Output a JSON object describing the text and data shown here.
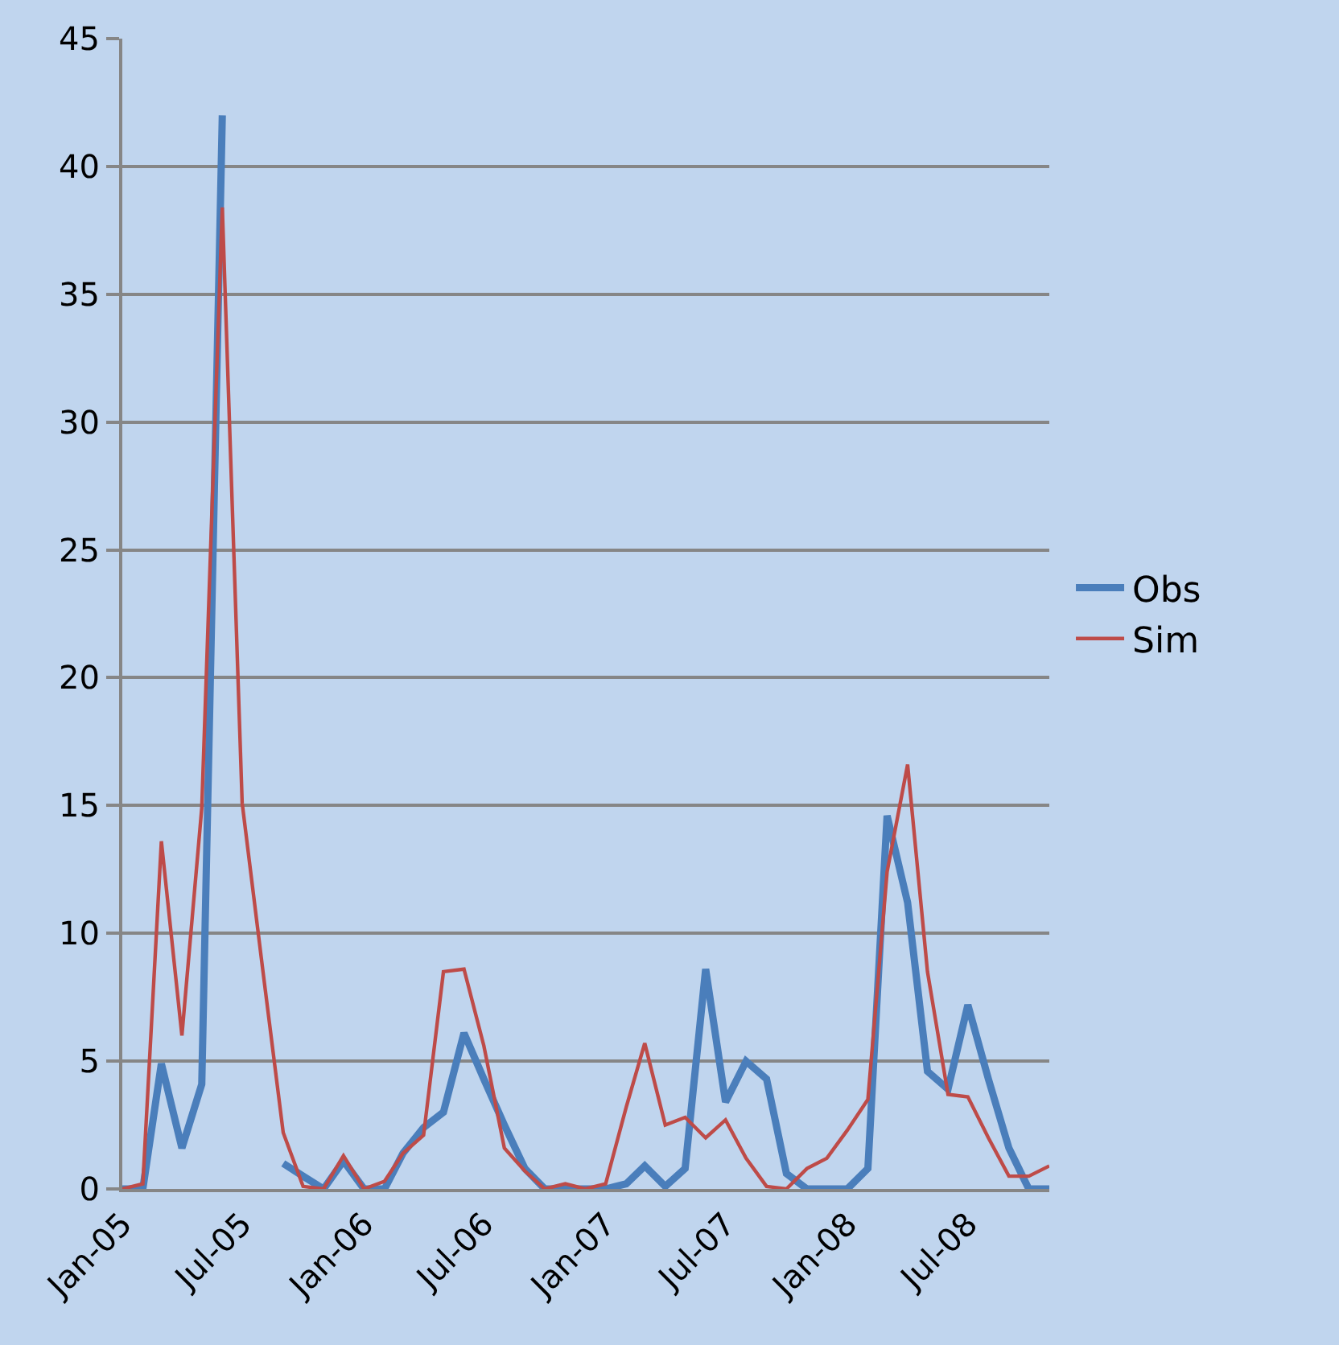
{
  "chart_data": {
    "type": "line",
    "x": [
      "2005-01",
      "2005-02",
      "2005-03",
      "2005-04",
      "2005-05",
      "2005-06",
      "2005-07",
      "2005-08",
      "2005-09",
      "2005-10",
      "2005-11",
      "2005-12",
      "2006-01",
      "2006-02",
      "2006-03",
      "2006-04",
      "2006-05",
      "2006-06",
      "2006-07",
      "2006-08",
      "2006-09",
      "2006-10",
      "2006-11",
      "2006-12",
      "2007-01",
      "2007-02",
      "2007-03",
      "2007-04",
      "2007-05",
      "2007-06",
      "2007-07",
      "2007-08",
      "2007-09",
      "2007-10",
      "2007-11",
      "2007-12",
      "2008-01",
      "2008-02",
      "2008-03",
      "2008-04",
      "2008-05",
      "2008-06",
      "2008-07",
      "2008-08",
      "2008-09",
      "2008-10",
      "2008-11"
    ],
    "series": [
      {
        "name": "Obs",
        "color": "#4a7ebb",
        "values": [
          0,
          0,
          4.9,
          1.6,
          4.1,
          42,
          null,
          null,
          1.0,
          0.5,
          0,
          1.1,
          0,
          0,
          1.4,
          2.4,
          3.0,
          6.1,
          4.3,
          2.5,
          0.8,
          0,
          0,
          0,
          0,
          0.2,
          0.9,
          0.1,
          0.8,
          8.6,
          3.4,
          5.0,
          4.3,
          0.6,
          0,
          0,
          0,
          0.8,
          14.6,
          11.2,
          4.6,
          3.9,
          7.2,
          4.3,
          1.6,
          0,
          0
        ]
      },
      {
        "name": "Sim",
        "color": "#be4b48",
        "values": [
          0,
          0.2,
          13.6,
          6.0,
          14.9,
          38.4,
          15.1,
          8.6,
          2.2,
          0.1,
          0,
          1.3,
          0,
          0.3,
          1.4,
          2.1,
          8.5,
          8.6,
          5.6,
          1.6,
          0.7,
          0,
          0.2,
          0,
          0.2,
          3.2,
          5.7,
          2.5,
          2.8,
          2.0,
          2.7,
          1.2,
          0.1,
          0,
          0.8,
          1.2,
          2.3,
          3.5,
          12.4,
          16.6,
          8.5,
          3.7,
          3.6,
          2.0,
          0.5,
          0.5,
          0.9
        ]
      }
    ],
    "xlim": [
      "2005-01",
      "2008-11"
    ],
    "xticks": [
      {
        "value": "2005-01",
        "label": "Jan-05"
      },
      {
        "value": "2005-07",
        "label": "Jul-05"
      },
      {
        "value": "2006-01",
        "label": "Jan-06"
      },
      {
        "value": "2006-07",
        "label": "Jul-06"
      },
      {
        "value": "2007-01",
        "label": "Jan-07"
      },
      {
        "value": "2007-07",
        "label": "Jul-07"
      },
      {
        "value": "2008-01",
        "label": "Jan-08"
      },
      {
        "value": "2008-07",
        "label": "Jul-08"
      }
    ],
    "ylim": [
      0,
      45
    ],
    "yticks": [
      0,
      5,
      10,
      15,
      20,
      25,
      30,
      35,
      40,
      45
    ],
    "grid": "y",
    "legend": "right",
    "marker": "none",
    "line_style": "solid"
  }
}
